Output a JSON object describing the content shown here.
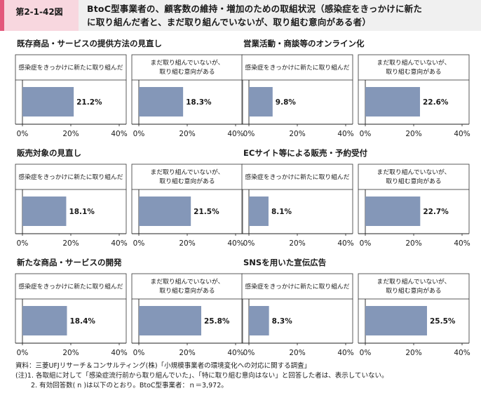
{
  "header": {
    "figure_label": "第2-1-42図",
    "title_line1": "BtoC型事業者の、顧客数の維持・増加のための取組状況（感染症をきっかけに新た",
    "title_line2": "に取り組んだ者と、まだ取り組んでいないが、取り組む意向がある者）"
  },
  "chart_data": {
    "type": "bar",
    "orientation": "horizontal",
    "xlim": [
      0,
      40
    ],
    "tick_labels": [
      "0%",
      "20%",
      "40%"
    ],
    "bar_color": "#8497b8",
    "panel_labels": [
      "感染症をきっかけに新たに取り組んだ",
      "まだ取り組んでいないが、\n取り組む意向がある"
    ],
    "panels": [
      {
        "title": "既存商品・サービスの提供方法の見直し",
        "values": [
          21.2,
          18.3
        ]
      },
      {
        "title": "営業活動・商談等のオンライン化",
        "values": [
          9.8,
          22.6
        ]
      },
      {
        "title": "販売対象の見直し",
        "values": [
          18.1,
          21.5
        ]
      },
      {
        "title": "ECサイト等による販売・予約受付",
        "values": [
          8.1,
          22.7
        ]
      },
      {
        "title": "新たな商品・サービスの開発",
        "values": [
          18.4,
          25.8
        ]
      },
      {
        "title": "SNSを用いた宣伝広告",
        "values": [
          8.3,
          25.5
        ]
      }
    ]
  },
  "notes": {
    "source": "資料：三菱UFJリサーチ＆コンサルティング(株)「小規模事業者の環境変化への対応に関する調査」",
    "note1": "(注)1.  各取組に対して「感染症流行前から取り組んでいた」、「特に取り組む意向はない」と回答した者は、表示していない。",
    "note2": "2.  有効回答数( n )は以下のとおり。BtoC型事業者：ｎ＝3,972。"
  }
}
